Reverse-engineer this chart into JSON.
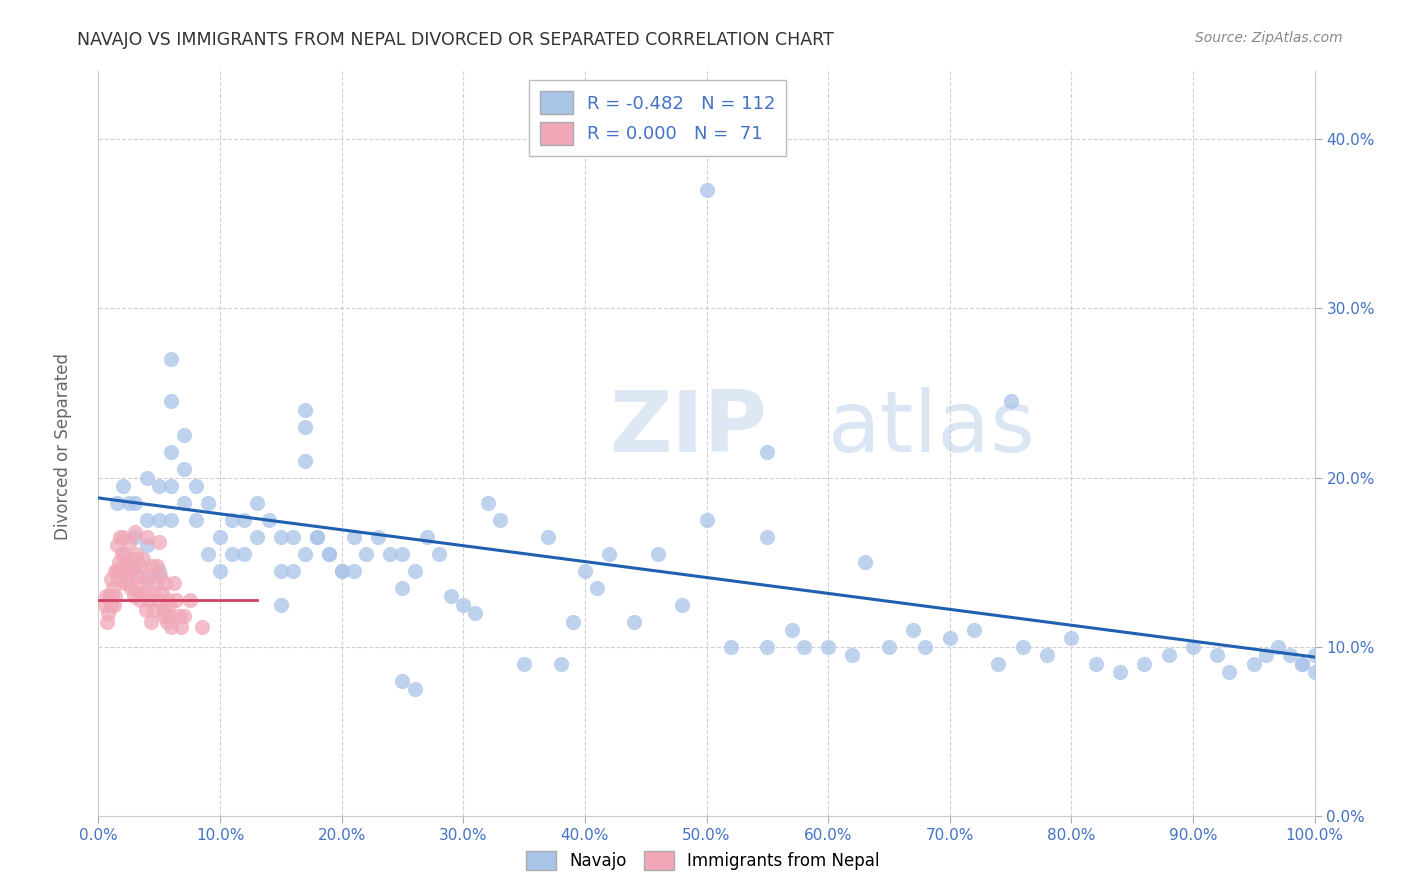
{
  "title": "NAVAJO VS IMMIGRANTS FROM NEPAL DIVORCED OR SEPARATED CORRELATION CHART",
  "source": "Source: ZipAtlas.com",
  "ylabel": "Divorced or Separated",
  "watermark_zip": "ZIP",
  "watermark_atlas": "atlas",
  "legend_navajo_R": "-0.482",
  "legend_navajo_N": "112",
  "legend_nepal_R": "0.000",
  "legend_nepal_N": "71",
  "navajo_color": "#aac4e8",
  "nepal_color": "#f0a8b8",
  "navajo_line_color": "#2060b0",
  "nepal_line_color": "#d04060",
  "background_color": "#ffffff",
  "grid_color": "#cccccc",
  "tick_color": "#4472c4",
  "title_color": "#333333",
  "source_color": "#888888",
  "ylabel_color": "#666666",
  "xlim": [
    0.0,
    1.0
  ],
  "ylim": [
    0.0,
    0.44
  ],
  "xtick_vals": [
    0.0,
    0.1,
    0.2,
    0.3,
    0.4,
    0.5,
    0.6,
    0.7,
    0.8,
    0.9,
    1.0
  ],
  "ytick_vals": [
    0.0,
    0.1,
    0.2,
    0.3,
    0.4
  ],
  "navajo_x": [
    0.015,
    0.02,
    0.025,
    0.03,
    0.03,
    0.03,
    0.04,
    0.04,
    0.04,
    0.04,
    0.05,
    0.05,
    0.05,
    0.06,
    0.06,
    0.06,
    0.06,
    0.06,
    0.07,
    0.07,
    0.07,
    0.08,
    0.08,
    0.09,
    0.09,
    0.1,
    0.1,
    0.11,
    0.11,
    0.12,
    0.12,
    0.13,
    0.13,
    0.14,
    0.15,
    0.15,
    0.15,
    0.16,
    0.16,
    0.17,
    0.18,
    0.19,
    0.2,
    0.21,
    0.21,
    0.22,
    0.23,
    0.24,
    0.25,
    0.25,
    0.26,
    0.27,
    0.28,
    0.29,
    0.3,
    0.31,
    0.32,
    0.33,
    0.35,
    0.37,
    0.38,
    0.39,
    0.4,
    0.41,
    0.42,
    0.44,
    0.46,
    0.48,
    0.5,
    0.52,
    0.55,
    0.55,
    0.57,
    0.58,
    0.6,
    0.62,
    0.63,
    0.65,
    0.67,
    0.68,
    0.7,
    0.72,
    0.74,
    0.76,
    0.78,
    0.8,
    0.82,
    0.84,
    0.86,
    0.88,
    0.9,
    0.92,
    0.93,
    0.95,
    0.96,
    0.97,
    0.98,
    0.99,
    1.0,
    1.0,
    0.99,
    0.5,
    0.55,
    0.17,
    0.17,
    0.17,
    0.18,
    0.19,
    0.2,
    0.25,
    0.26,
    0.75
  ],
  "navajo_y": [
    0.185,
    0.195,
    0.185,
    0.185,
    0.165,
    0.145,
    0.2,
    0.175,
    0.16,
    0.14,
    0.195,
    0.175,
    0.145,
    0.27,
    0.245,
    0.215,
    0.195,
    0.175,
    0.225,
    0.205,
    0.185,
    0.195,
    0.175,
    0.185,
    0.155,
    0.165,
    0.145,
    0.175,
    0.155,
    0.175,
    0.155,
    0.185,
    0.165,
    0.175,
    0.165,
    0.145,
    0.125,
    0.165,
    0.145,
    0.155,
    0.165,
    0.155,
    0.145,
    0.165,
    0.145,
    0.155,
    0.165,
    0.155,
    0.135,
    0.155,
    0.145,
    0.165,
    0.155,
    0.13,
    0.125,
    0.12,
    0.185,
    0.175,
    0.09,
    0.165,
    0.09,
    0.115,
    0.145,
    0.135,
    0.155,
    0.115,
    0.155,
    0.125,
    0.175,
    0.1,
    0.1,
    0.165,
    0.11,
    0.1,
    0.1,
    0.095,
    0.15,
    0.1,
    0.11,
    0.1,
    0.105,
    0.11,
    0.09,
    0.1,
    0.095,
    0.105,
    0.09,
    0.085,
    0.09,
    0.095,
    0.1,
    0.095,
    0.085,
    0.09,
    0.095,
    0.1,
    0.095,
    0.09,
    0.095,
    0.085,
    0.09,
    0.37,
    0.215,
    0.24,
    0.23,
    0.21,
    0.165,
    0.155,
    0.145,
    0.08,
    0.075,
    0.245
  ],
  "nepal_x": [
    0.005,
    0.006,
    0.007,
    0.008,
    0.009,
    0.01,
    0.01,
    0.011,
    0.012,
    0.013,
    0.014,
    0.014,
    0.015,
    0.015,
    0.016,
    0.017,
    0.018,
    0.018,
    0.019,
    0.02,
    0.02,
    0.021,
    0.022,
    0.022,
    0.023,
    0.024,
    0.025,
    0.025,
    0.026,
    0.027,
    0.028,
    0.029,
    0.03,
    0.03,
    0.031,
    0.032,
    0.033,
    0.034,
    0.035,
    0.036,
    0.037,
    0.038,
    0.039,
    0.04,
    0.041,
    0.042,
    0.043,
    0.044,
    0.045,
    0.046,
    0.047,
    0.048,
    0.049,
    0.05,
    0.051,
    0.052,
    0.053,
    0.054,
    0.055,
    0.056,
    0.057,
    0.058,
    0.059,
    0.06,
    0.062,
    0.064,
    0.066,
    0.068,
    0.07,
    0.075,
    0.085
  ],
  "nepal_y": [
    0.125,
    0.13,
    0.115,
    0.12,
    0.13,
    0.125,
    0.14,
    0.13,
    0.135,
    0.125,
    0.145,
    0.13,
    0.16,
    0.145,
    0.14,
    0.15,
    0.165,
    0.145,
    0.155,
    0.165,
    0.148,
    0.155,
    0.148,
    0.138,
    0.145,
    0.138,
    0.162,
    0.148,
    0.145,
    0.135,
    0.148,
    0.13,
    0.168,
    0.152,
    0.155,
    0.142,
    0.132,
    0.128,
    0.148,
    0.138,
    0.152,
    0.132,
    0.122,
    0.165,
    0.142,
    0.128,
    0.115,
    0.148,
    0.132,
    0.122,
    0.138,
    0.148,
    0.128,
    0.162,
    0.142,
    0.132,
    0.122,
    0.118,
    0.138,
    0.115,
    0.128,
    0.125,
    0.118,
    0.112,
    0.138,
    0.128,
    0.118,
    0.112,
    0.118,
    0.128,
    0.112
  ],
  "navajo_trendline_x": [
    0.0,
    1.0
  ],
  "navajo_trendline_y": [
    0.188,
    0.094
  ],
  "nepal_trendline_x": [
    0.0,
    0.13
  ],
  "nepal_trendline_y": [
    0.128,
    0.128
  ]
}
